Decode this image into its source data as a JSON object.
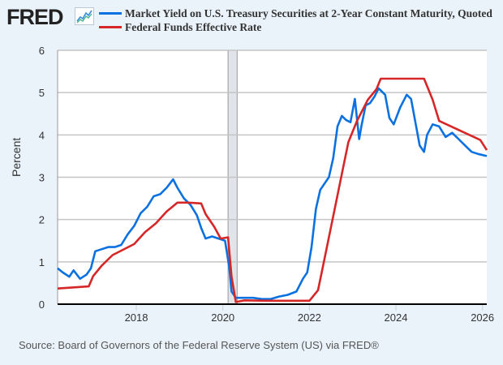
{
  "logo": {
    "text": "FRED",
    "icon": "trend-chart-icon"
  },
  "legend": [
    {
      "label": "Market Yield on U.S. Treasury Securities at 2-Year Constant Maturity, Quoted",
      "color": "#0b71e0"
    },
    {
      "label": "Federal Funds Effective Rate",
      "color": "#d62728"
    }
  ],
  "source": "Source: Board of Governors of the Federal Reserve System (US) via FRED®",
  "chart_data": {
    "type": "line",
    "title": "",
    "xlabel": "",
    "ylabel": "Percent",
    "xlim": [
      2016.18,
      2026.1
    ],
    "ylim": [
      0,
      6
    ],
    "grid": true,
    "legend_position": "top",
    "x_ticks": [
      2018,
      2020,
      2022,
      2024,
      2026
    ],
    "x_tick_labels": [
      "2018",
      "2020",
      "2022",
      "2024",
      "2026"
    ],
    "y_ticks": [
      0,
      1,
      2,
      3,
      4,
      5,
      6
    ],
    "y_tick_labels": [
      "0",
      "1",
      "2",
      "3",
      "4",
      "5",
      "6"
    ],
    "recession_shading": [
      {
        "start": 2020.12,
        "end": 2020.33
      }
    ],
    "series": [
      {
        "name": "Market Yield on U.S. Treasury Securities at 2-Year Constant Maturity, Quoted",
        "color": "#0b71e0",
        "x": [
          2016.18,
          2016.3,
          2016.45,
          2016.55,
          2016.7,
          2016.85,
          2016.95,
          2017.05,
          2017.2,
          2017.35,
          2017.5,
          2017.65,
          2017.8,
          2017.95,
          2018.1,
          2018.25,
          2018.4,
          2018.55,
          2018.7,
          2018.85,
          2018.95,
          2019.1,
          2019.25,
          2019.4,
          2019.5,
          2019.6,
          2019.75,
          2019.9,
          2020.05,
          2020.15,
          2020.2,
          2020.3,
          2020.5,
          2020.7,
          2020.9,
          2021.1,
          2021.3,
          2021.5,
          2021.7,
          2021.85,
          2021.95,
          2022.05,
          2022.15,
          2022.25,
          2022.35,
          2022.45,
          2022.55,
          2022.65,
          2022.75,
          2022.85,
          2022.95,
          2023.05,
          2023.15,
          2023.2,
          2023.3,
          2023.4,
          2023.5,
          2023.6,
          2023.75,
          2023.85,
          2023.95,
          2024.1,
          2024.25,
          2024.35,
          2024.45,
          2024.55,
          2024.65,
          2024.72,
          2024.85,
          2025.0,
          2025.15,
          2025.3,
          2025.45,
          2025.6,
          2025.75,
          2025.9,
          2026.1
        ],
        "y": [
          0.85,
          0.75,
          0.65,
          0.8,
          0.6,
          0.7,
          0.85,
          1.25,
          1.3,
          1.35,
          1.35,
          1.4,
          1.65,
          1.85,
          2.15,
          2.3,
          2.55,
          2.6,
          2.75,
          2.95,
          2.75,
          2.5,
          2.35,
          2.1,
          1.8,
          1.55,
          1.6,
          1.55,
          1.5,
          0.85,
          0.3,
          0.15,
          0.15,
          0.15,
          0.12,
          0.12,
          0.18,
          0.22,
          0.3,
          0.6,
          0.75,
          1.35,
          2.25,
          2.7,
          2.85,
          3.0,
          3.45,
          4.2,
          4.45,
          4.35,
          4.3,
          4.85,
          3.9,
          4.2,
          4.7,
          4.75,
          4.9,
          5.1,
          4.95,
          4.4,
          4.25,
          4.65,
          4.95,
          4.85,
          4.3,
          3.75,
          3.6,
          4.0,
          4.25,
          4.2,
          3.95,
          4.05,
          3.9,
          3.75,
          3.6,
          3.55,
          3.5
        ]
      },
      {
        "name": "Federal Funds Effective Rate",
        "color": "#d62728",
        "x": [
          2016.18,
          2016.9,
          2017.0,
          2017.2,
          2017.45,
          2017.95,
          2018.2,
          2018.45,
          2018.7,
          2018.95,
          2019.2,
          2019.5,
          2019.6,
          2019.8,
          2019.95,
          2020.12,
          2020.2,
          2020.3,
          2020.5,
          2021.0,
          2021.5,
          2022.0,
          2022.2,
          2022.3,
          2022.45,
          2022.6,
          2022.75,
          2022.9,
          2023.1,
          2023.35,
          2023.55,
          2023.65,
          2024.65,
          2024.85,
          2025.0,
          2025.95,
          2026.1
        ],
        "y": [
          0.37,
          0.42,
          0.66,
          0.91,
          1.16,
          1.42,
          1.7,
          1.91,
          2.19,
          2.4,
          2.4,
          2.38,
          2.13,
          1.83,
          1.55,
          1.58,
          0.65,
          0.05,
          0.09,
          0.08,
          0.08,
          0.08,
          0.33,
          0.83,
          1.58,
          2.33,
          3.08,
          3.83,
          4.33,
          4.83,
          5.08,
          5.33,
          5.33,
          4.83,
          4.33,
          3.88,
          3.64
        ]
      }
    ]
  }
}
